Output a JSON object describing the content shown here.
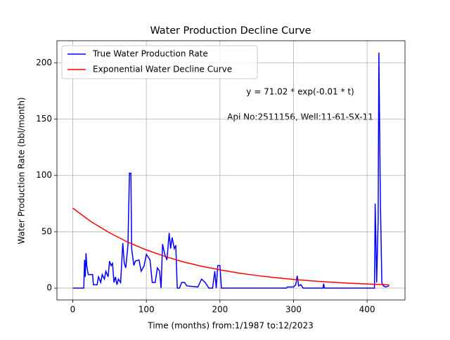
{
  "chart_data": {
    "type": "line",
    "title": "Water Production Decline Curve",
    "x_label": "Time (months) from:1/1987 to:12/2023",
    "y_label": "Water Production Rate (bbl/month)",
    "annotations": [
      "y = 71.02 * exp(-0.01 * t)",
      "Api No:2511156, Well:11-61-SX-11"
    ],
    "xlim": [
      -21.5,
      451.5
    ],
    "ylim": [
      -10.5,
      219.5
    ],
    "xticks": [
      0,
      100,
      200,
      300,
      400
    ],
    "yticks": [
      0,
      50,
      100,
      150,
      200
    ],
    "grid": true,
    "legend": "upper left",
    "series": [
      {
        "name": "True Water Production Rate",
        "color": "#0000ff",
        "x": [
          0,
          15,
          16,
          17,
          18,
          19,
          21,
          27,
          28,
          33,
          35,
          38,
          40,
          43,
          45,
          48,
          50,
          52,
          54,
          56,
          58,
          60,
          62,
          65,
          68,
          70,
          72,
          75,
          77,
          79,
          80,
          83,
          85,
          90,
          93,
          97,
          100,
          105,
          108,
          112,
          115,
          118,
          120,
          122,
          125,
          128,
          131,
          133,
          135,
          138,
          140,
          142,
          145,
          148,
          152,
          155,
          170,
          175,
          180,
          185,
          190,
          193,
          195,
          197,
          200,
          202,
          290,
          292,
          300,
          303,
          305,
          307,
          310,
          313,
          340,
          341,
          342,
          410,
          411,
          413,
          415,
          416,
          418,
          420,
          422,
          425,
          430
        ],
        "values": [
          0,
          0,
          25,
          10,
          31,
          20,
          12,
          12,
          3,
          3,
          10,
          5,
          12,
          8,
          15,
          10,
          24,
          20,
          22,
          5,
          10,
          3,
          8,
          5,
          40,
          22,
          18,
          38,
          102,
          102,
          35,
          20,
          24,
          25,
          15,
          20,
          30,
          25,
          5,
          5,
          18,
          15,
          0,
          39,
          30,
          25,
          49,
          35,
          45,
          35,
          38,
          0,
          0,
          5,
          5,
          2,
          1,
          8,
          5,
          0,
          0,
          15,
          0,
          20,
          20,
          0,
          0,
          1,
          1,
          3,
          11,
          2,
          3,
          0,
          0,
          4,
          0,
          0,
          75,
          5,
          60,
          209,
          80,
          5,
          2,
          1,
          2
        ]
      },
      {
        "name": "Exponential Water Decline Curve",
        "color": "#ff0000",
        "x": [
          0,
          25,
          50,
          75,
          100,
          125,
          150,
          175,
          200,
          225,
          250,
          275,
          300,
          325,
          350,
          375,
          400,
          430
        ],
        "values": [
          71.02,
          58.9,
          49.1,
          40.7,
          33.9,
          28.2,
          23.3,
          19.4,
          16.2,
          13.4,
          11.2,
          9.3,
          7.7,
          6.4,
          5.3,
          4.4,
          3.7,
          2.9
        ]
      }
    ]
  }
}
